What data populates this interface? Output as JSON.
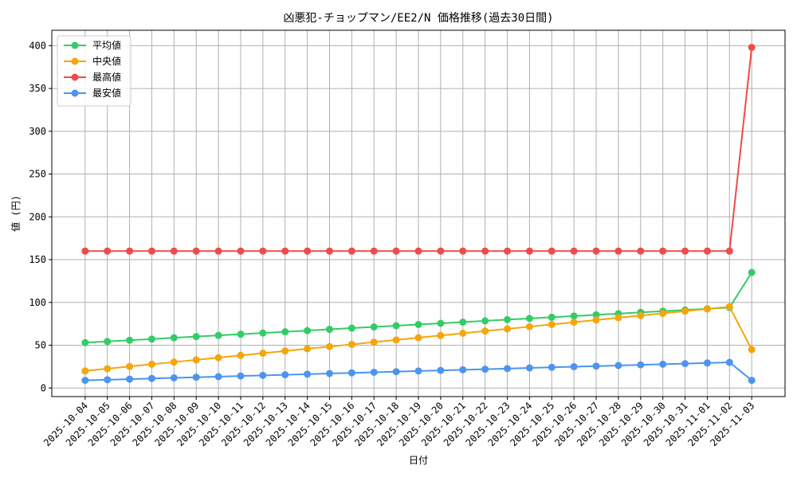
{
  "chart_data": {
    "type": "line",
    "title": "凶悪犯-チョップマン/EE2/N 価格推移(過去30日間)",
    "xlabel": "日付",
    "ylabel": "値 (円)",
    "categories": [
      "2025-10-04",
      "2025-10-05",
      "2025-10-06",
      "2025-10-07",
      "2025-10-08",
      "2025-10-09",
      "2025-10-10",
      "2025-10-11",
      "2025-10-12",
      "2025-10-13",
      "2025-10-14",
      "2025-10-15",
      "2025-10-16",
      "2025-10-17",
      "2025-10-18",
      "2025-10-19",
      "2025-10-20",
      "2025-10-21",
      "2025-10-22",
      "2025-10-23",
      "2025-10-24",
      "2025-10-25",
      "2025-10-26",
      "2025-10-27",
      "2025-10-28",
      "2025-10-29",
      "2025-10-30",
      "2025-10-31",
      "2025-11-01",
      "2025-11-02",
      "2025-11-03"
    ],
    "series": [
      {
        "name": "平均値",
        "color": "#33cc66",
        "values": [
          53,
          54.4,
          55.8,
          57.2,
          58.7,
          60.1,
          61.5,
          62.9,
          64.3,
          65.7,
          67.1,
          68.6,
          70.0,
          71.4,
          72.8,
          74.2,
          75.6,
          77.0,
          78.5,
          79.9,
          81.3,
          82.7,
          84.1,
          85.5,
          86.9,
          88.4,
          89.8,
          91.2,
          92.6,
          94.0,
          135
        ]
      },
      {
        "name": "中央値",
        "color": "#f5a60a",
        "values": [
          20,
          22.6,
          25.2,
          27.8,
          30.3,
          32.9,
          35.5,
          38.1,
          40.7,
          43.3,
          45.9,
          48.4,
          51.0,
          53.6,
          56.2,
          58.8,
          61.4,
          64.0,
          66.6,
          69.1,
          71.7,
          74.3,
          76.9,
          79.5,
          82.1,
          84.7,
          87.2,
          89.8,
          92.4,
          95.0,
          45
        ]
      },
      {
        "name": "最高値",
        "color": "#f04a4a",
        "values": [
          160,
          160,
          160,
          160,
          160,
          160,
          160,
          160,
          160,
          160,
          160,
          160,
          160,
          160,
          160,
          160,
          160,
          160,
          160,
          160,
          160,
          160,
          160,
          160,
          160,
          160,
          160,
          160,
          160,
          160,
          398
        ]
      },
      {
        "name": "最安値",
        "color": "#4d94f0",
        "values": [
          9,
          9.7,
          10.4,
          11.2,
          11.9,
          12.6,
          13.3,
          14.1,
          14.8,
          15.5,
          16.2,
          17.0,
          17.7,
          18.4,
          19.1,
          19.9,
          20.6,
          21.3,
          22.0,
          22.7,
          23.5,
          24.2,
          24.9,
          25.6,
          26.3,
          27.1,
          27.8,
          28.5,
          29.3,
          30.0,
          9
        ]
      }
    ],
    "ylim": [
      -10,
      418
    ],
    "yticks": [
      0,
      50,
      100,
      150,
      200,
      250,
      300,
      350,
      400
    ],
    "grid": true,
    "legend": "upper-left"
  }
}
